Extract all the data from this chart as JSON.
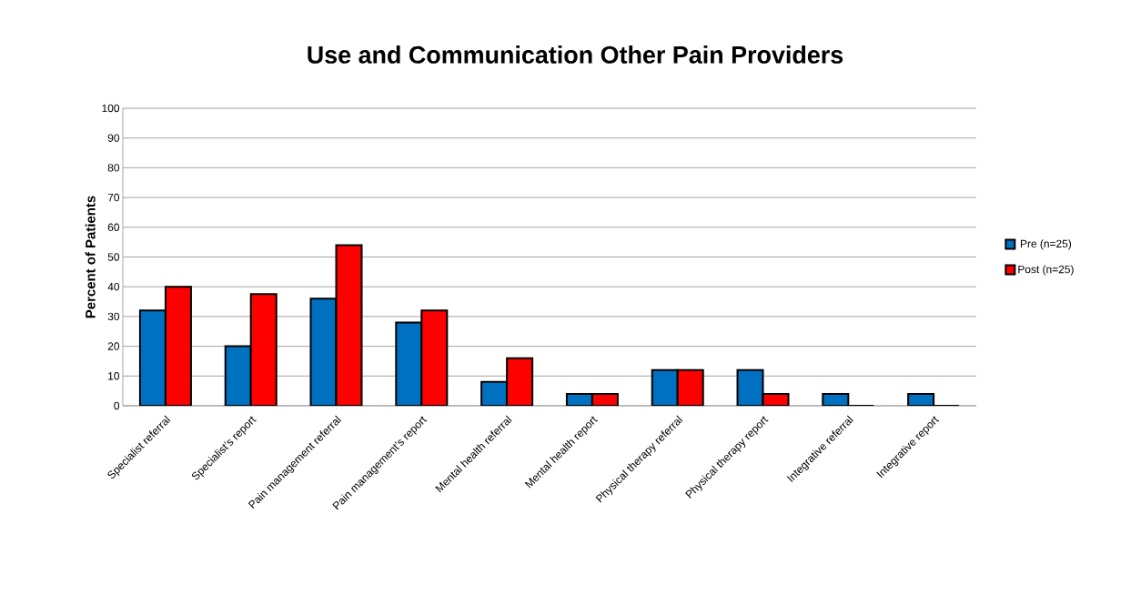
{
  "chart_data": {
    "type": "bar",
    "title": "Use and Communication Other Pain Providers",
    "ylabel": "Percent of Patients",
    "categories": [
      "Specialist referral",
      "Specialist’s report",
      "Pain management referral",
      "Pain management’s report",
      "Mental health referral",
      "Mental health report",
      "Physical therapy referral",
      "Physical therapy report",
      "Integrative referral",
      "Integrative report"
    ],
    "series": [
      {
        "name": "Pre (n=25)",
        "color": "#0070c0",
        "values": [
          32,
          20,
          36,
          28,
          8,
          4,
          12,
          12,
          4,
          4
        ]
      },
      {
        "name": "Post (n=25)",
        "color": "#ff0000",
        "values": [
          40,
          37.5,
          54,
          32,
          16,
          4,
          12,
          4,
          0,
          0
        ]
      }
    ],
    "ylim": [
      0,
      100
    ],
    "yticks": [
      0,
      10,
      20,
      30,
      40,
      50,
      60,
      70,
      80,
      90,
      100
    ],
    "grid": "y",
    "legend": "right"
  }
}
